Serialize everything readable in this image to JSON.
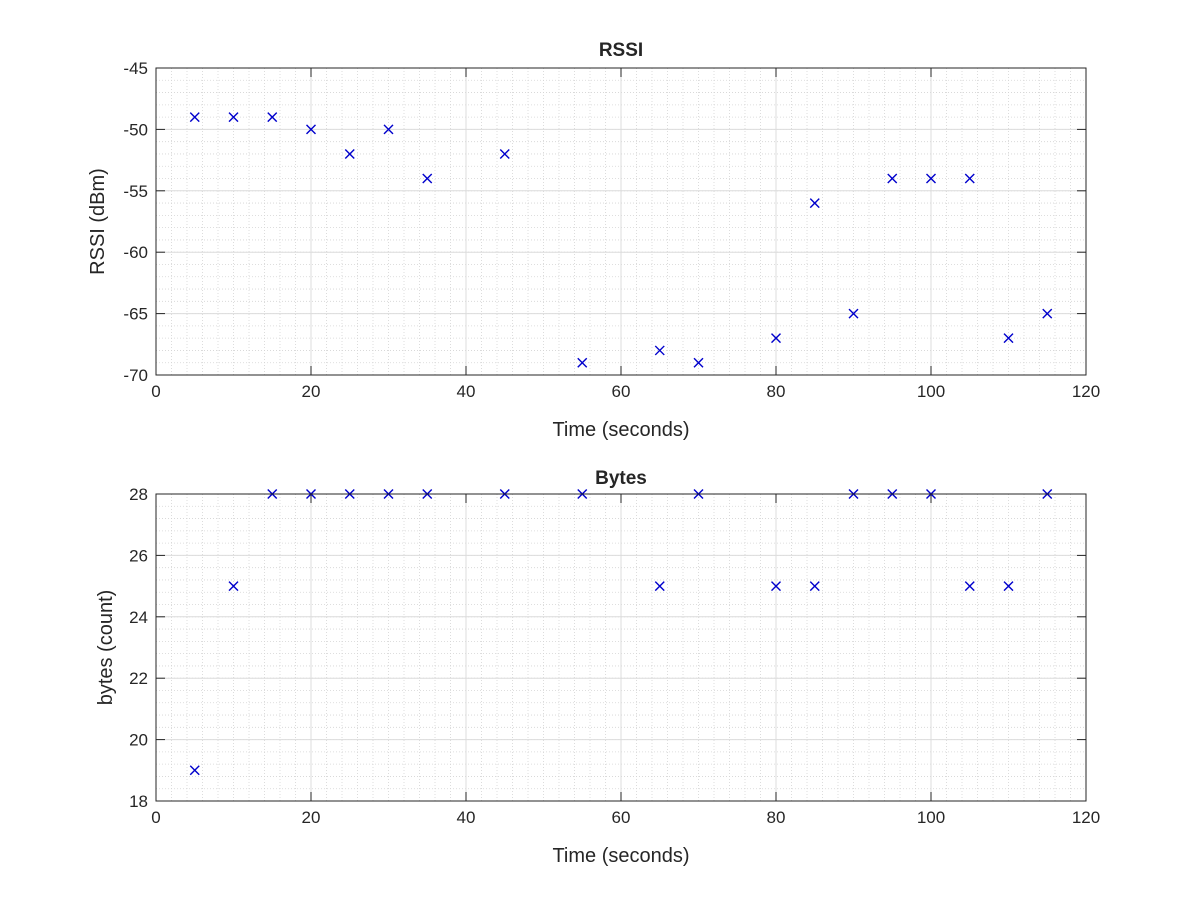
{
  "chart_data": [
    {
      "type": "scatter",
      "title": "RSSI",
      "xlabel": "Time (seconds)",
      "ylabel": "RSSI (dBm)",
      "xlim": [
        0,
        120
      ],
      "ylim": [
        -70,
        -45
      ],
      "xticks": [
        0,
        20,
        40,
        60,
        80,
        100,
        120
      ],
      "yticks": [
        -70,
        -65,
        -60,
        -55,
        -50,
        -45
      ],
      "xtick_labels": [
        "0",
        "20",
        "40",
        "60",
        "80",
        "100",
        "120"
      ],
      "ytick_labels": [
        "-70",
        "-65",
        "-60",
        "-55",
        "-50",
        "-45"
      ],
      "grid": true,
      "minor_grid": true,
      "marker": "x",
      "color": "#0000CC",
      "x": [
        5,
        10,
        15,
        20,
        25,
        30,
        35,
        45,
        55,
        65,
        70,
        80,
        85,
        90,
        95,
        100,
        105,
        110,
        115
      ],
      "y": [
        -49,
        -49,
        -49,
        -50,
        -52,
        -50,
        -54,
        -52,
        -69,
        -68,
        -69,
        -67,
        -56,
        -65,
        -54,
        -54,
        -54,
        -67,
        -65
      ]
    },
    {
      "type": "scatter",
      "title": "Bytes",
      "xlabel": "Time (seconds)",
      "ylabel": "bytes (count)",
      "xlim": [
        0,
        120
      ],
      "ylim": [
        18,
        28
      ],
      "xticks": [
        0,
        20,
        40,
        60,
        80,
        100,
        120
      ],
      "yticks": [
        18,
        20,
        22,
        24,
        26,
        28
      ],
      "xtick_labels": [
        "0",
        "20",
        "40",
        "60",
        "80",
        "100",
        "120"
      ],
      "ytick_labels": [
        "18",
        "20",
        "22",
        "24",
        "26",
        "28"
      ],
      "grid": true,
      "minor_grid": true,
      "marker": "x",
      "color": "#0000CC",
      "x": [
        5,
        10,
        15,
        20,
        25,
        30,
        35,
        45,
        55,
        65,
        70,
        80,
        85,
        90,
        95,
        100,
        105,
        110,
        115
      ],
      "y": [
        19,
        25,
        28,
        28,
        28,
        28,
        28,
        28,
        28,
        25,
        28,
        25,
        25,
        28,
        28,
        28,
        25,
        25,
        28
      ]
    }
  ]
}
